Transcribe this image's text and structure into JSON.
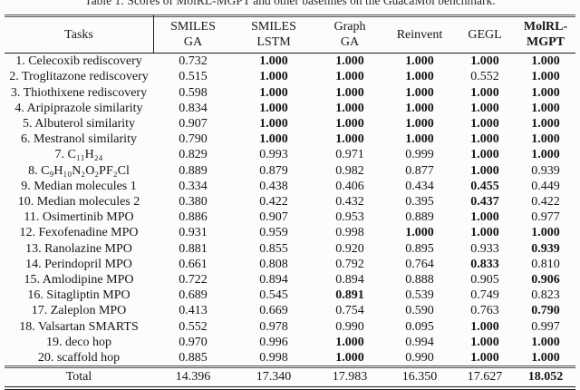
{
  "caption": "Table 1: Scores of MolRL-MGPT and other baselines on the GuacaMol benchmark.",
  "table": {
    "columns": [
      {
        "label": "Tasks",
        "lines": [
          "Tasks"
        ],
        "bold": false
      },
      {
        "label": "SMILES GA",
        "lines": [
          "SMILES",
          "GA"
        ],
        "bold": false
      },
      {
        "label": "SMILES LSTM",
        "lines": [
          "SMILES",
          "LSTM"
        ],
        "bold": false
      },
      {
        "label": "Graph GA",
        "lines": [
          "Graph",
          "GA"
        ],
        "bold": false
      },
      {
        "label": "Reinvent",
        "lines": [
          "Reinvent"
        ],
        "bold": false
      },
      {
        "label": "GEGL",
        "lines": [
          "GEGL"
        ],
        "bold": false
      },
      {
        "label": "MolRL-MGPT",
        "lines": [
          "MolRL-",
          "MGPT"
        ],
        "bold": true
      }
    ],
    "rows": [
      {
        "task": "1. Celecoxib rediscovery",
        "values": [
          "0.732",
          "1.000",
          "1.000",
          "1.000",
          "1.000",
          "1.000"
        ],
        "bold": [
          false,
          true,
          true,
          true,
          true,
          true
        ]
      },
      {
        "task": "2. Troglitazone rediscovery",
        "values": [
          "0.515",
          "1.000",
          "1.000",
          "1.000",
          "0.552",
          "1.000"
        ],
        "bold": [
          false,
          true,
          true,
          true,
          false,
          true
        ]
      },
      {
        "task": "3. Thiothixene rediscovery",
        "values": [
          "0.598",
          "1.000",
          "1.000",
          "1.000",
          "1.000",
          "1.000"
        ],
        "bold": [
          false,
          true,
          true,
          true,
          true,
          true
        ]
      },
      {
        "task": "4. Aripiprazole similarity",
        "values": [
          "0.834",
          "1.000",
          "1.000",
          "1.000",
          "1.000",
          "1.000"
        ],
        "bold": [
          false,
          true,
          true,
          true,
          true,
          true
        ]
      },
      {
        "task": "5. Albuterol similarity",
        "values": [
          "0.907",
          "1.000",
          "1.000",
          "1.000",
          "1.000",
          "1.000"
        ],
        "bold": [
          false,
          true,
          true,
          true,
          true,
          true
        ]
      },
      {
        "task": "6. Mestranol similarity",
        "values": [
          "0.790",
          "1.000",
          "1.000",
          "1.000",
          "1.000",
          "1.000"
        ],
        "bold": [
          false,
          true,
          true,
          true,
          true,
          true
        ]
      },
      {
        "task": "7. C₁₁H₂₄",
        "values": [
          "0.829",
          "0.993",
          "0.971",
          "0.999",
          "1.000",
          "1.000"
        ],
        "bold": [
          false,
          false,
          false,
          false,
          true,
          true
        ]
      },
      {
        "task": "8. C₉H₁₀N₂O₂PF₂Cl",
        "values": [
          "0.889",
          "0.879",
          "0.982",
          "0.877",
          "1.000",
          "0.939"
        ],
        "bold": [
          false,
          false,
          false,
          false,
          true,
          false
        ]
      },
      {
        "task": "9. Median molecules 1",
        "values": [
          "0.334",
          "0.438",
          "0.406",
          "0.434",
          "0.455",
          "0.449"
        ],
        "bold": [
          false,
          false,
          false,
          false,
          true,
          false
        ]
      },
      {
        "task": "10. Median molecules 2",
        "values": [
          "0.380",
          "0.422",
          "0.432",
          "0.395",
          "0.437",
          "0.422"
        ],
        "bold": [
          false,
          false,
          false,
          false,
          true,
          false
        ]
      },
      {
        "task": "11. Osimertinib MPO",
        "values": [
          "0.886",
          "0.907",
          "0.953",
          "0.889",
          "1.000",
          "0.977"
        ],
        "bold": [
          false,
          false,
          false,
          false,
          true,
          false
        ]
      },
      {
        "task": "12. Fexofenadine MPO",
        "values": [
          "0.931",
          "0.959",
          "0.998",
          "1.000",
          "1.000",
          "1.000"
        ],
        "bold": [
          false,
          false,
          false,
          true,
          true,
          true
        ]
      },
      {
        "task": "13. Ranolazine MPO",
        "values": [
          "0.881",
          "0.855",
          "0.920",
          "0.895",
          "0.933",
          "0.939"
        ],
        "bold": [
          false,
          false,
          false,
          false,
          false,
          true
        ]
      },
      {
        "task": "14. Perindopril MPO",
        "values": [
          "0.661",
          "0.808",
          "0.792",
          "0.764",
          "0.833",
          "0.810"
        ],
        "bold": [
          false,
          false,
          false,
          false,
          true,
          false
        ]
      },
      {
        "task": "15. Amlodipine MPO",
        "values": [
          "0.722",
          "0.894",
          "0.894",
          "0.888",
          "0.905",
          "0.906"
        ],
        "bold": [
          false,
          false,
          false,
          false,
          false,
          true
        ]
      },
      {
        "task": "16. Sitagliptin MPO",
        "values": [
          "0.689",
          "0.545",
          "0.891",
          "0.539",
          "0.749",
          "0.823"
        ],
        "bold": [
          false,
          false,
          true,
          false,
          false,
          false
        ]
      },
      {
        "task": "17. Zaleplon MPO",
        "values": [
          "0.413",
          "0.669",
          "0.754",
          "0.590",
          "0.763",
          "0.790"
        ],
        "bold": [
          false,
          false,
          false,
          false,
          false,
          true
        ]
      },
      {
        "task": "18. Valsartan SMARTS",
        "values": [
          "0.552",
          "0.978",
          "0.990",
          "0.095",
          "1.000",
          "0.997"
        ],
        "bold": [
          false,
          false,
          false,
          false,
          true,
          false
        ]
      },
      {
        "task": "19. deco hop",
        "values": [
          "0.970",
          "0.996",
          "1.000",
          "0.994",
          "1.000",
          "1.000"
        ],
        "bold": [
          false,
          false,
          true,
          false,
          true,
          true
        ]
      },
      {
        "task": "20. scaffold hop",
        "values": [
          "0.885",
          "0.998",
          "1.000",
          "0.990",
          "1.000",
          "1.000"
        ],
        "bold": [
          false,
          false,
          true,
          false,
          true,
          true
        ]
      }
    ],
    "total": {
      "task": "Total",
      "values": [
        "14.396",
        "17.340",
        "17.983",
        "16.350",
        "17.627",
        "18.052"
      ],
      "bold": [
        false,
        false,
        false,
        false,
        false,
        true
      ]
    }
  }
}
